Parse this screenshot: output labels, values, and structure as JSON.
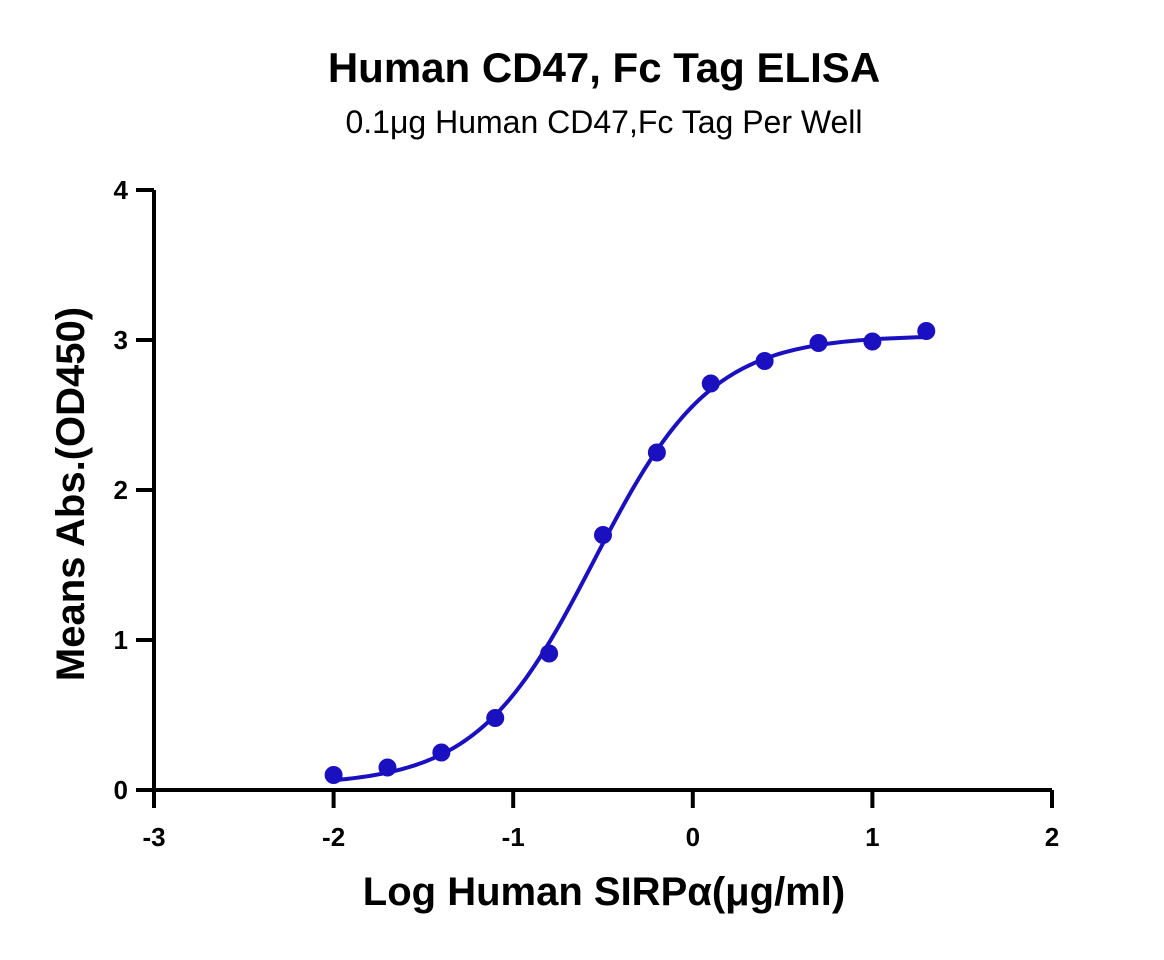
{
  "chart_data": {
    "type": "scatter",
    "title": "Human CD47, Fc Tag ELISA",
    "subtitle": "0.1μg Human CD47,Fc Tag Per Well",
    "xlabel": "Log Human SIRPα(μg/ml)",
    "ylabel": "Means Abs.(OD450)",
    "xlim": [
      -3,
      2
    ],
    "ylim": [
      0,
      4
    ],
    "xticks": [
      -3,
      -2,
      -1,
      0,
      1,
      2
    ],
    "yticks": [
      0,
      1,
      2,
      3,
      4
    ],
    "grid": false,
    "series": [
      {
        "color": "#1a10c0",
        "fit": "sigmoidal",
        "x": [
          -2.0,
          -1.7,
          -1.4,
          -1.1,
          -0.8,
          -0.5,
          -0.2,
          0.1,
          0.4,
          0.7,
          1.0,
          1.3
        ],
        "y": [
          0.1,
          0.15,
          0.25,
          0.48,
          0.91,
          1.7,
          2.25,
          2.71,
          2.86,
          2.98,
          2.99,
          3.06
        ]
      }
    ]
  }
}
